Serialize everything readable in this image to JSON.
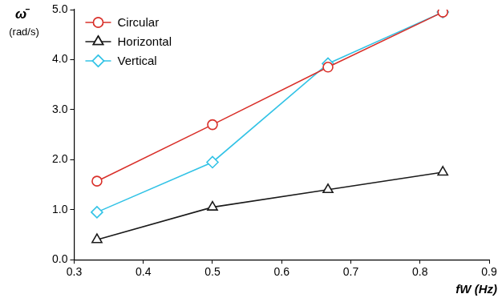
{
  "chart_data": {
    "type": "line",
    "x_label": "fW (Hz)",
    "y_label": "ω̄ (rad/s)",
    "xlim": [
      0.3,
      0.9
    ],
    "xticks": [
      0.3,
      0.4,
      0.5,
      0.6,
      0.7,
      0.8,
      0.9
    ],
    "ylim": [
      0,
      5
    ],
    "yticks": [
      {
        "value": 0,
        "label": "0.0"
      },
      {
        "value": 1,
        "label": "1.0"
      },
      {
        "value": 2,
        "label": "2.0"
      },
      {
        "value": 3,
        "label": "3.0"
      },
      {
        "value": 4,
        "label": "4.0"
      },
      {
        "value": 5,
        "label": "5.0"
      }
    ],
    "grid": false,
    "legend": "upper left",
    "x": [
      0.333,
      0.5,
      0.667,
      0.833
    ],
    "series": [
      {
        "name": "Circular",
        "color": "#d9302a",
        "marker": "circle",
        "values": [
          1.57,
          2.7,
          3.85,
          4.95
        ]
      },
      {
        "name": "Horizontal",
        "color": "#1a1a1a",
        "marker": "triangle",
        "values": [
          0.4,
          1.05,
          1.4,
          1.75
        ]
      },
      {
        "name": "Vertical",
        "color": "#33c3e6",
        "marker": "diamond",
        "values": [
          0.95,
          1.95,
          3.92,
          4.95
        ]
      }
    ]
  }
}
